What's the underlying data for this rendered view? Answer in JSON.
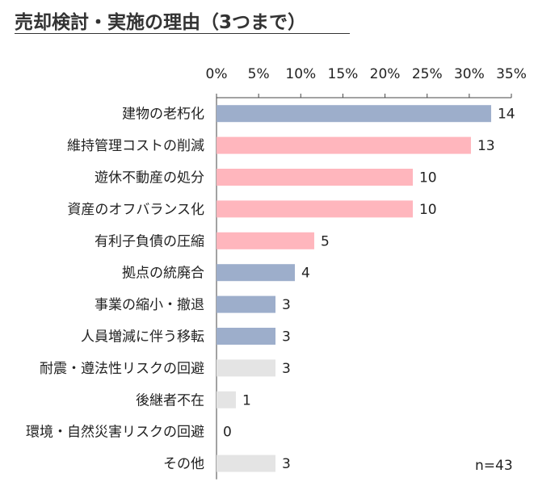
{
  "title": "売却検討・実施の理由（3つまで）",
  "sample_note": "n=43",
  "colors": {
    "blue": "#9daecb",
    "pink": "#ffb6bd",
    "gray": "#e4e4e4",
    "axis": "#444444"
  },
  "chart_data": {
    "type": "bar",
    "orientation": "horizontal",
    "xlim": [
      0,
      35
    ],
    "xticks": [
      "0%",
      "5%",
      "10%",
      "15%",
      "20%",
      "25%",
      "30%",
      "35%"
    ],
    "tick_values": [
      0,
      5,
      10,
      15,
      20,
      25,
      30,
      35
    ],
    "categories": [
      "建物の老朽化",
      "維持管理コストの削減",
      "遊休不動産の処分",
      "資産のオフバランス化",
      "有利子負債の圧縮",
      "拠点の統廃合",
      "事業の縮小・撤退",
      "人員増減に伴う移転",
      "耐震・遵法性リスクの回避",
      "後継者不在",
      "環境・自然災害リスクの回避",
      "その他"
    ],
    "counts": [
      14,
      13,
      10,
      10,
      5,
      4,
      3,
      3,
      3,
      1,
      0,
      3
    ],
    "percent_values": [
      32.6,
      30.2,
      23.3,
      23.3,
      11.6,
      9.3,
      7.0,
      7.0,
      7.0,
      2.3,
      0,
      7.0
    ],
    "bar_colors": [
      "blue",
      "pink",
      "pink",
      "pink",
      "pink",
      "blue",
      "blue",
      "blue",
      "gray",
      "gray",
      "gray",
      "gray"
    ],
    "grid": false
  }
}
